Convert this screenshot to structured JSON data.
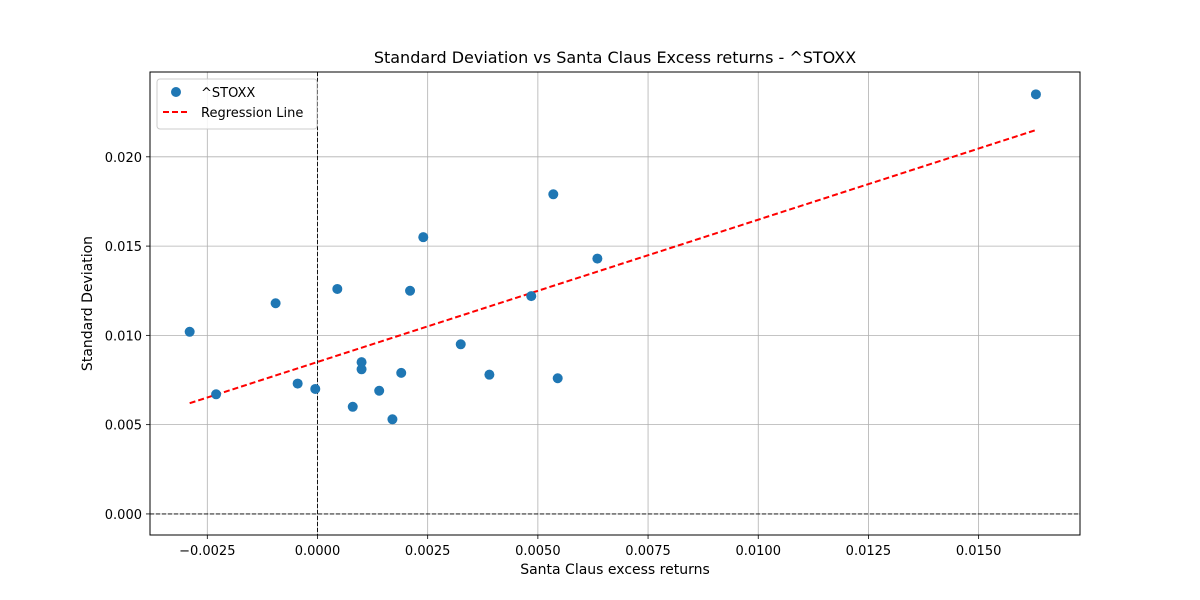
{
  "chart_data": {
    "type": "scatter",
    "title": "Standard Deviation vs Santa Claus Excess returns - ^STOXX",
    "xlabel": "Santa Claus excess returns",
    "ylabel": "Standard Deviation",
    "xlim": [
      -0.0038,
      0.0173
    ],
    "ylim": [
      -0.00118,
      0.02475
    ],
    "xticks": [
      -0.0025,
      0.0,
      0.0025,
      0.005,
      0.0075,
      0.01,
      0.0125,
      0.015
    ],
    "xtick_labels": [
      "−0.0025",
      "0.0000",
      "0.0025",
      "0.0050",
      "0.0075",
      "0.0100",
      "0.0125",
      "0.0150"
    ],
    "yticks": [
      0.0,
      0.005,
      0.01,
      0.015,
      0.02
    ],
    "ytick_labels": [
      "0.000",
      "0.005",
      "0.010",
      "0.015",
      "0.020"
    ],
    "grid": true,
    "legend_position": "top-left",
    "reference_lines": {
      "x": 0.0,
      "y": 0.0
    },
    "series": [
      {
        "name": "^STOXX",
        "kind": "points",
        "color": "#1f77b4",
        "points": [
          [
            -0.0029,
            0.0102
          ],
          [
            -0.0023,
            0.0067
          ],
          [
            -0.00095,
            0.0118
          ],
          [
            -0.00045,
            0.0073
          ],
          [
            -5e-05,
            0.007
          ],
          [
            0.00045,
            0.0126
          ],
          [
            0.0008,
            0.006
          ],
          [
            0.001,
            0.0081
          ],
          [
            0.001,
            0.0085
          ],
          [
            0.0014,
            0.0069
          ],
          [
            0.0017,
            0.0053
          ],
          [
            0.0019,
            0.0079
          ],
          [
            0.0021,
            0.0125
          ],
          [
            0.0024,
            0.0155
          ],
          [
            0.00325,
            0.0095
          ],
          [
            0.0039,
            0.0078
          ],
          [
            0.00485,
            0.0122
          ],
          [
            0.00535,
            0.0179
          ],
          [
            0.00545,
            0.0076
          ],
          [
            0.00635,
            0.0143
          ],
          [
            0.0163,
            0.0235
          ]
        ]
      },
      {
        "name": "Regression Line",
        "kind": "line",
        "color": "#ff0000",
        "style": "dashed",
        "points": [
          [
            -0.0029,
            0.0062
          ],
          [
            0.0163,
            0.0215
          ]
        ]
      }
    ]
  }
}
